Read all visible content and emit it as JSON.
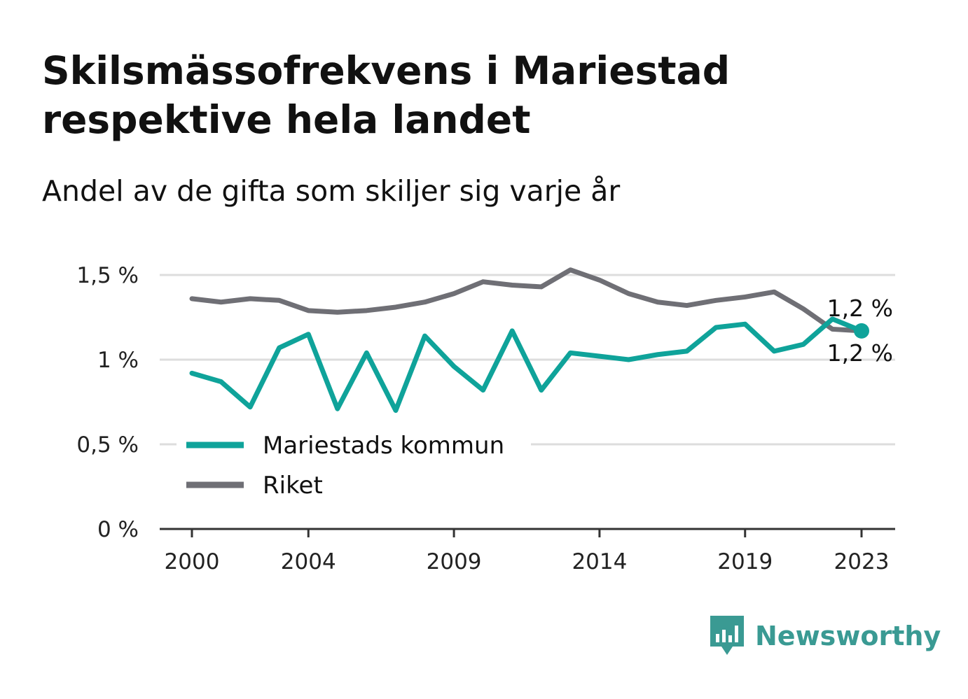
{
  "title": "Skilsmässofrekvens i Mariestad respektive hela landet",
  "subtitle": "Andel av de gifta som skiljer sig varje år",
  "brand": {
    "name": "Newsworthy",
    "icon": "newsworthy-logo-icon",
    "color": "#3a9a93"
  },
  "colors": {
    "kommun": "#0fa39a",
    "riket": "#6f6f75",
    "grid": "#dddddd",
    "axis": "#333333"
  },
  "chart_data": {
    "type": "line",
    "x": [
      2000,
      2001,
      2002,
      2003,
      2004,
      2005,
      2006,
      2007,
      2008,
      2009,
      2010,
      2011,
      2012,
      2013,
      2014,
      2015,
      2016,
      2017,
      2018,
      2019,
      2020,
      2021,
      2022,
      2023
    ],
    "x_ticks": [
      2000,
      2004,
      2009,
      2014,
      2019,
      2023
    ],
    "x_tick_labels": [
      "2000",
      "2004",
      "2009",
      "2014",
      "2019",
      "2023"
    ],
    "y_ticks": [
      0,
      0.5,
      1,
      1.5
    ],
    "y_tick_labels": [
      "0 %",
      "0,5 %",
      "1 %",
      "1,5 %"
    ],
    "ylim": [
      0,
      1.5
    ],
    "grid": true,
    "legend_position": "bottom-left",
    "series": [
      {
        "name": "Mariestads kommun",
        "color": "#0fa39a",
        "values": [
          0.92,
          0.87,
          0.72,
          1.07,
          1.15,
          0.71,
          1.04,
          0.7,
          1.14,
          0.96,
          0.82,
          1.17,
          0.82,
          1.04,
          1.02,
          1.0,
          1.03,
          1.05,
          1.19,
          1.21,
          1.05,
          1.09,
          1.24,
          1.17
        ],
        "end_label": "1,2 %"
      },
      {
        "name": "Riket",
        "color": "#6f6f75",
        "values": [
          1.36,
          1.34,
          1.36,
          1.35,
          1.29,
          1.28,
          1.29,
          1.31,
          1.34,
          1.39,
          1.46,
          1.44,
          1.43,
          1.53,
          1.47,
          1.39,
          1.34,
          1.32,
          1.35,
          1.37,
          1.4,
          1.3,
          1.18,
          1.17
        ],
        "end_label": "1,2 %"
      }
    ]
  }
}
